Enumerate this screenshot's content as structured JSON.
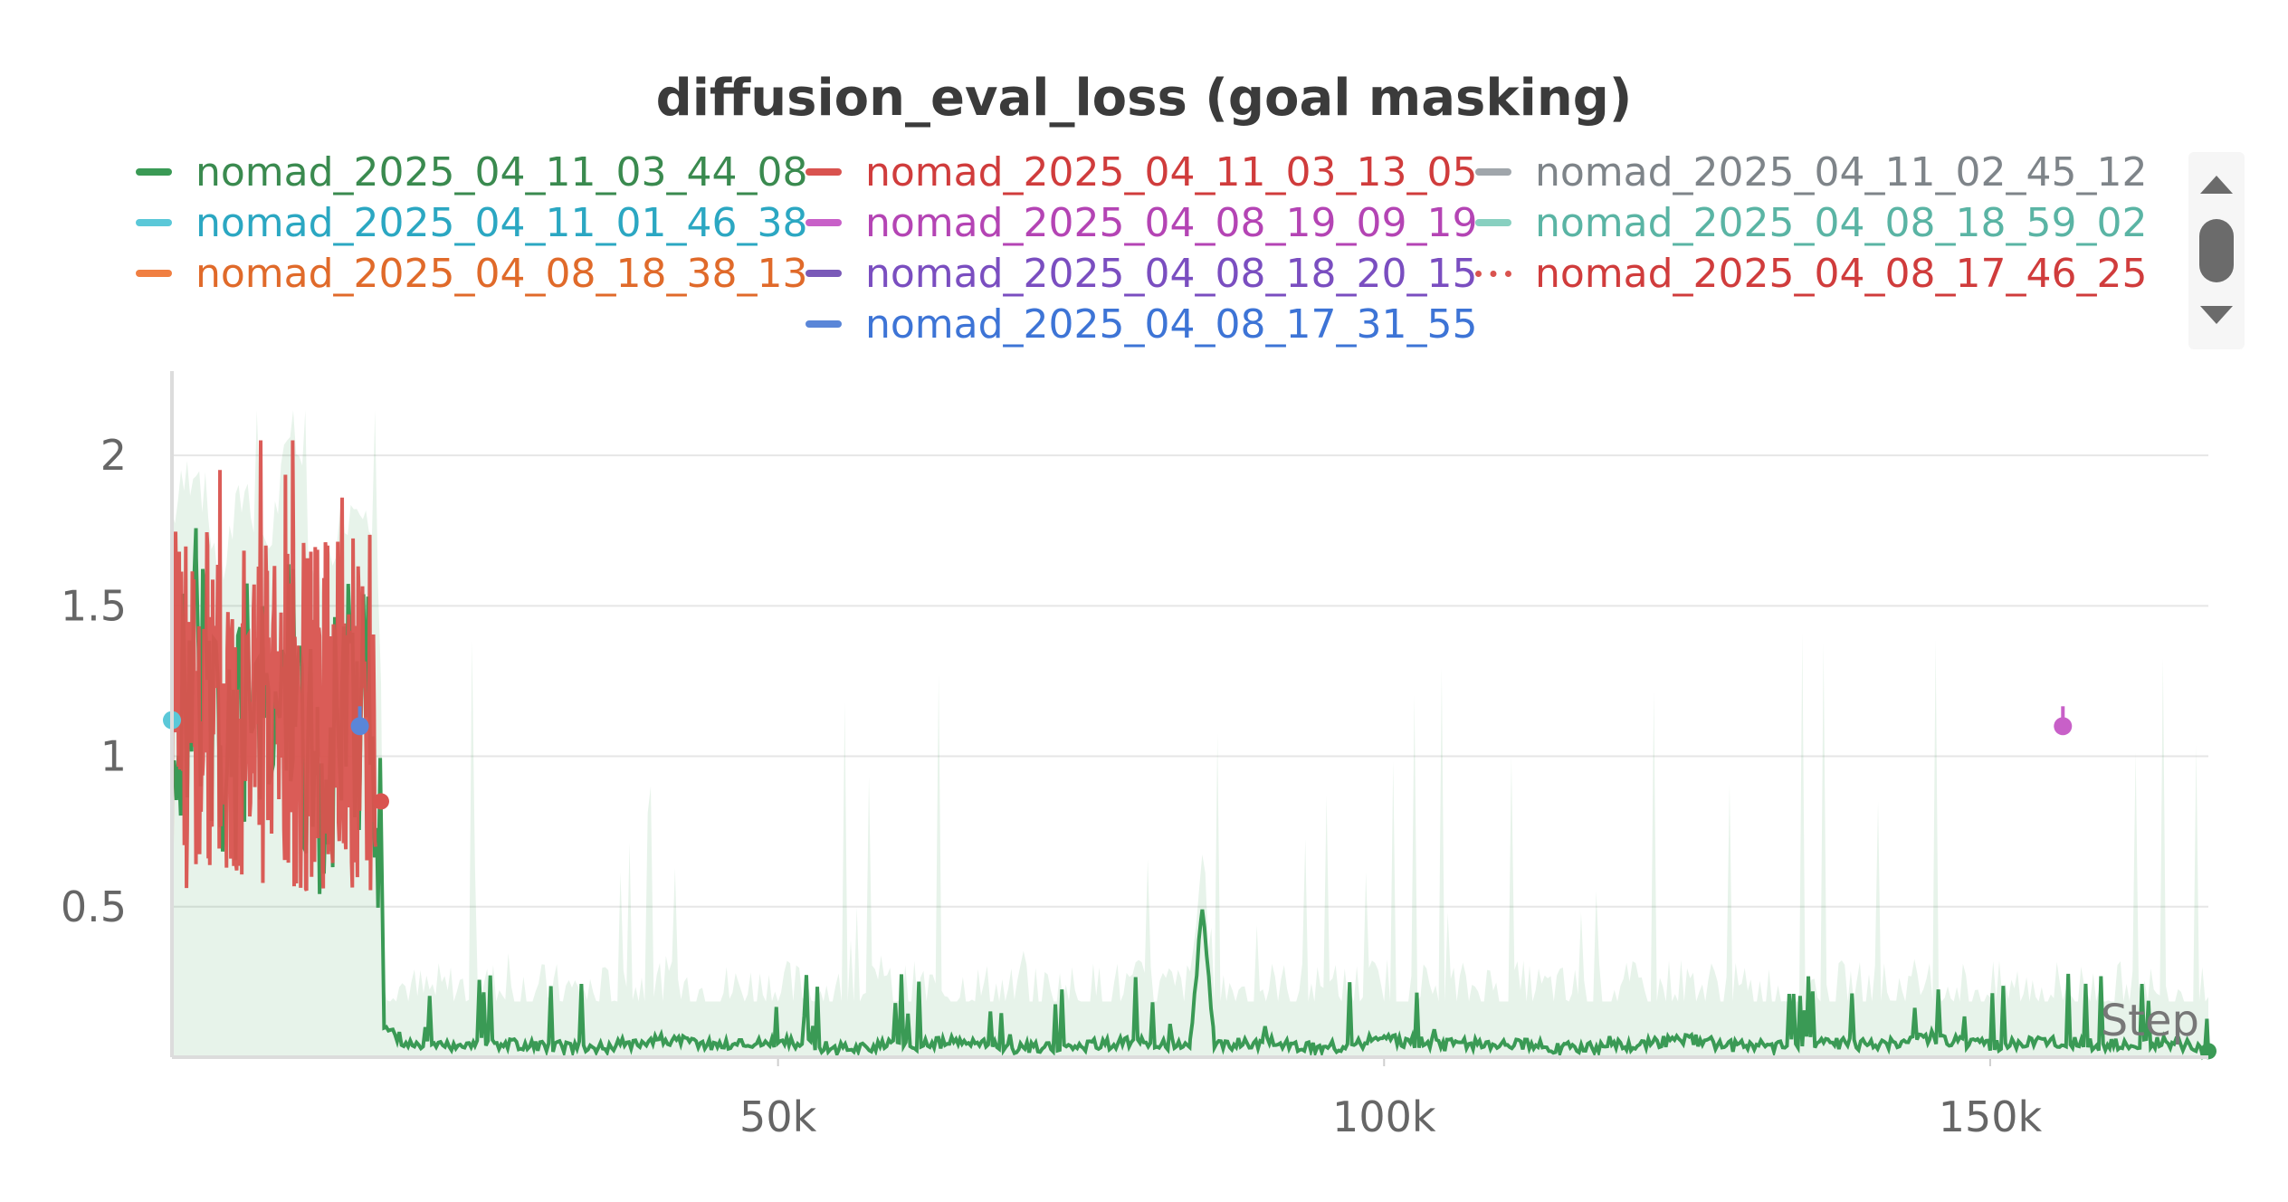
{
  "chart_data": {
    "type": "line",
    "title": "diffusion_eval_loss (goal masking)",
    "xlabel": "Step",
    "ylabel": "",
    "xlim": [
      0,
      168000
    ],
    "ylim": [
      0,
      2.25
    ],
    "xticks": [
      50000,
      100000,
      150000
    ],
    "xtick_labels": [
      "50k",
      "100k",
      "150k"
    ],
    "yticks": [
      0.5,
      1,
      1.5,
      2
    ],
    "ytick_labels": [
      "0.5",
      "1",
      "1.5",
      "2"
    ],
    "grid": true,
    "legend_position": "top",
    "series": [
      {
        "name": "nomad_2025_04_11_03_44_08",
        "color": "#3a9a55",
        "style": "solid",
        "x": [
          0,
          2000,
          4000,
          6000,
          8000,
          10000,
          12000,
          14000,
          16000,
          17000,
          17500,
          20000,
          25000,
          30000,
          35000,
          40000,
          45000,
          50000,
          55000,
          60000,
          65000,
          70000,
          75000,
          80000,
          84000,
          85000,
          86000,
          90000,
          95000,
          100000,
          105000,
          110000,
          115000,
          120000,
          125000,
          130000,
          135000,
          140000,
          145000,
          150000,
          155000,
          160000,
          165000,
          168000
        ],
        "y": [
          1.1,
          1.3,
          0.9,
          1.2,
          1.0,
          1.4,
          0.8,
          1.1,
          1.2,
          0.9,
          0.1,
          0.03,
          0.05,
          0.04,
          0.03,
          0.06,
          0.04,
          0.05,
          0.03,
          0.04,
          0.05,
          0.03,
          0.04,
          0.05,
          0.04,
          0.5,
          0.04,
          0.05,
          0.03,
          0.06,
          0.04,
          0.05,
          0.03,
          0.04,
          0.06,
          0.03,
          0.05,
          0.04,
          0.06,
          0.04,
          0.05,
          0.04,
          0.05,
          0.02
        ]
      },
      {
        "name": "nomad_2025_04_11_03_13_05",
        "color": "#d9534f",
        "style": "solid",
        "x": [
          0,
          1000,
          2000,
          3000,
          4000,
          5000,
          6000,
          7000,
          8000,
          9000,
          10000,
          11000,
          12000,
          13000,
          14000,
          15000,
          16000,
          16800
        ],
        "y": [
          1.2,
          0.8,
          1.7,
          0.9,
          1.5,
          0.7,
          1.6,
          0.9,
          1.3,
          0.8,
          1.7,
          0.7,
          1.5,
          0.9,
          1.8,
          0.8,
          1.6,
          0.85
        ]
      },
      {
        "name": "nomad_2025_04_11_02_45_12",
        "color": "#a0a6ab",
        "style": "solid",
        "x": [],
        "y": []
      },
      {
        "name": "nomad_2025_04_11_01_46_38",
        "color": "#5bc8d8",
        "style": "solid",
        "x": [
          0
        ],
        "y": [
          1.12
        ]
      },
      {
        "name": "nomad_2025_04_08_19_09_19",
        "color": "#c860c8",
        "style": "solid",
        "x": [
          156000
        ],
        "y": [
          1.1
        ]
      },
      {
        "name": "nomad_2025_04_08_18_59_02",
        "color": "#88d0c0",
        "style": "solid",
        "x": [],
        "y": []
      },
      {
        "name": "nomad_2025_04_08_18_38_13",
        "color": "#f07f42",
        "style": "solid",
        "x": [],
        "y": []
      },
      {
        "name": "nomad_2025_04_08_18_20_15",
        "color": "#7a5ab8",
        "style": "solid",
        "x": [],
        "y": []
      },
      {
        "name": "nomad_2025_04_08_17_46_25",
        "color": "#d9534f",
        "style": "dotted",
        "x": [],
        "y": []
      },
      {
        "name": "nomad_2025_04_08_17_31_55",
        "color": "#5a86d8",
        "style": "solid",
        "x": [
          15500
        ],
        "y": [
          1.1
        ]
      }
    ]
  },
  "legend": {
    "text_colors": [
      "#3a8a4f",
      "#d03c3c",
      "#7e8489",
      "#2ba7c2",
      "#b444b4",
      "#5ab4a4",
      "#e06a2a",
      "#7a4ec0",
      "#d03c3c",
      "#3d74d6"
    ]
  }
}
